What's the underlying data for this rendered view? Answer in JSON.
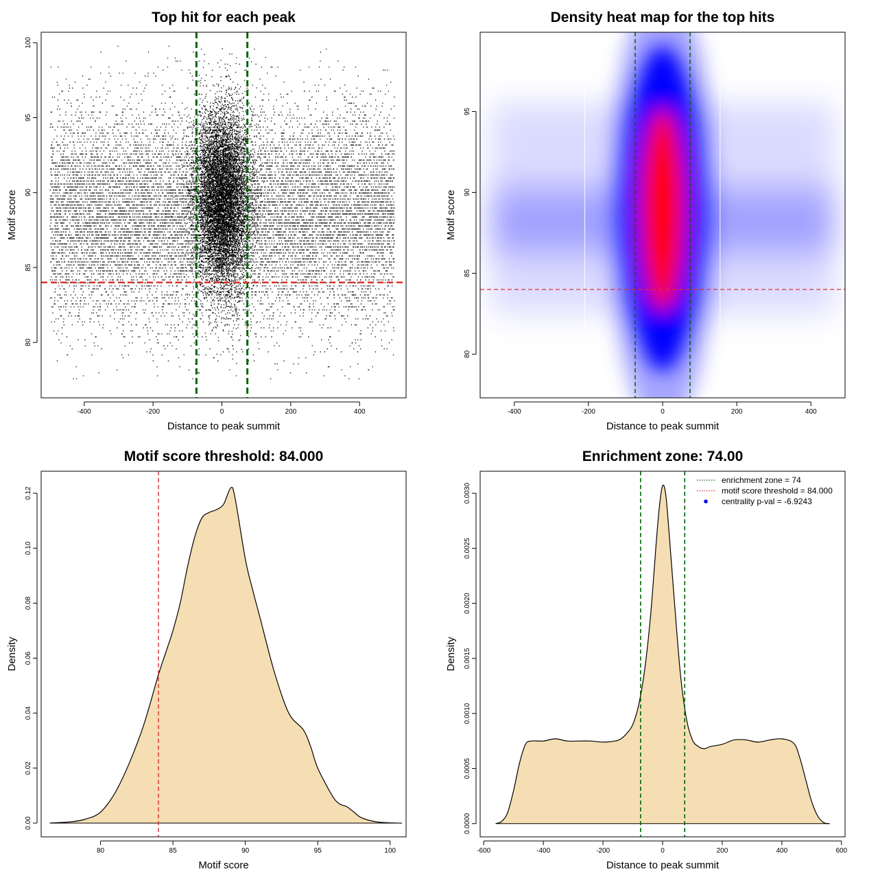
{
  "chart_data": [
    {
      "id": "scatter",
      "type": "scatter",
      "title": "Top hit for each peak",
      "xlabel": "Distance to peak summit",
      "ylabel": "Motif score",
      "xlim": [
        -525,
        535
      ],
      "ylim": [
        76.3,
        100.7
      ],
      "xticks": [
        -400,
        -200,
        0,
        200,
        400
      ],
      "xtick_labels": [
        "-400",
        "-200",
        "0",
        "200",
        "400"
      ],
      "yticks": [
        80,
        85,
        90,
        95,
        100
      ],
      "ytick_labels": [
        "80",
        "85",
        "90",
        "95",
        "100"
      ],
      "vlines": [
        -74,
        74
      ],
      "vline_color": "#006400",
      "hline": 84,
      "hline_color": "#e03030",
      "point_color": "#000000",
      "x_range": [
        -500,
        500
      ],
      "y_range": [
        77.5,
        99.8
      ],
      "center_sd": 40,
      "background_score_mean": 88.5,
      "background_score_sd": 3.5,
      "center_score_mean": 89.5,
      "center_score_sd": 3
    },
    {
      "id": "heatmap",
      "type": "heatmap",
      "title": "Density heat map for the top hits",
      "xlabel": "Distance to peak summit",
      "ylabel": "Motif score",
      "xlim": [
        -492,
        492
      ],
      "ylim": [
        77.3,
        99.9
      ],
      "xticks": [
        -400,
        -200,
        0,
        200,
        400
      ],
      "xtick_labels": [
        "-400",
        "-200",
        "0",
        "200",
        "400"
      ],
      "yticks": [
        80,
        85,
        90,
        95
      ],
      "ytick_labels": [
        "80",
        "85",
        "90",
        "95"
      ],
      "vlines": [
        -74,
        74
      ],
      "vline_color": "#006400",
      "hline": 84,
      "hline_color": "#e03030",
      "colors": [
        "#ffffff",
        "#0000ff",
        "#ff0000"
      ],
      "center": {
        "x": 0,
        "y": 89,
        "sx": 40,
        "sy": 3.6
      },
      "background_bands": [
        89.2,
        87.3
      ],
      "x_range": [
        -500,
        500
      ]
    },
    {
      "id": "score_density",
      "type": "area",
      "title": "Motif score threshold: 84.000",
      "xlabel": "Motif score",
      "ylabel": "Density",
      "xlim": [
        75.9,
        101.1
      ],
      "ylim": [
        -0.005,
        0.128
      ],
      "xticks": [
        80,
        85,
        90,
        95,
        100
      ],
      "xtick_labels": [
        "80",
        "85",
        "90",
        "95",
        "100"
      ],
      "yticks": [
        0.0,
        0.02,
        0.04,
        0.06,
        0.08,
        0.1,
        0.12
      ],
      "ytick_labels": [
        "0.00",
        "0.02",
        "0.04",
        "0.06",
        "0.08",
        "0.10",
        "0.12"
      ],
      "fill": "#f5deb3",
      "vline": 84,
      "vline_color": "#d62020",
      "x": [
        76.5,
        78,
        79,
        80,
        81,
        82,
        83,
        84,
        84.5,
        85,
        85.5,
        86,
        86.5,
        87,
        87.5,
        88,
        88.5,
        89,
        89.3,
        90,
        90.5,
        91,
        92,
        93,
        94,
        94.5,
        95,
        96,
        96.5,
        97,
        97.5,
        98,
        99,
        100,
        100.8
      ],
      "y": [
        0,
        0.0005,
        0.0015,
        0.004,
        0.011,
        0.022,
        0.036,
        0.054,
        0.062,
        0.07,
        0.08,
        0.093,
        0.104,
        0.111,
        0.113,
        0.114,
        0.116,
        0.122,
        0.118,
        0.096,
        0.085,
        0.075,
        0.055,
        0.04,
        0.034,
        0.028,
        0.02,
        0.01,
        0.007,
        0.006,
        0.004,
        0.002,
        0.0005,
        0.0001,
        0
      ]
    },
    {
      "id": "distance_density",
      "type": "area",
      "title": "Enrichment zone: 74.00",
      "xlabel": "Distance to peak summit",
      "ylabel": "Density",
      "xlim": [
        -612,
        612
      ],
      "ylim": [
        -0.00012,
        0.0032
      ],
      "xticks": [
        -600,
        -400,
        -200,
        0,
        200,
        400,
        600
      ],
      "xtick_labels": [
        "-600",
        "-400",
        "-200",
        "0",
        "200",
        "400",
        "600"
      ],
      "yticks": [
        0.0,
        0.0005,
        0.001,
        0.0015,
        0.002,
        0.0025,
        0.003
      ],
      "ytick_labels": [
        "0.0000",
        "0.0005",
        "0.0010",
        "0.0015",
        "0.0020",
        "0.0025",
        "0.0030"
      ],
      "fill": "#f5deb3",
      "vlines": [
        -74,
        74
      ],
      "vline_color": "#006400",
      "x": [
        -560,
        -540,
        -520,
        -500,
        -480,
        -460,
        -440,
        -400,
        -360,
        -320,
        -280,
        -240,
        -200,
        -160,
        -140,
        -120,
        -100,
        -80,
        -60,
        -40,
        -20,
        -10,
        0,
        10,
        20,
        40,
        60,
        80,
        100,
        120,
        140,
        160,
        200,
        240,
        280,
        320,
        360,
        400,
        440,
        460,
        480,
        500,
        520,
        540,
        560
      ],
      "y": [
        0,
        2e-05,
        0.0001,
        0.0003,
        0.00055,
        0.00072,
        0.00075,
        0.00075,
        0.00077,
        0.00075,
        0.00075,
        0.00075,
        0.00074,
        0.00075,
        0.00077,
        0.00082,
        0.0009,
        0.00108,
        0.0014,
        0.0019,
        0.0026,
        0.0029,
        0.00307,
        0.003,
        0.0027,
        0.002,
        0.00135,
        0.00095,
        0.00076,
        0.0007,
        0.00068,
        0.0007,
        0.00072,
        0.00076,
        0.00076,
        0.00074,
        0.00076,
        0.00077,
        0.00073,
        0.0006,
        0.0004,
        0.0002,
        7e-05,
        1e-05,
        0
      ],
      "legend": {
        "position": "top-right",
        "entries": [
          {
            "label": "enrichment zone = 74",
            "color": "#006400",
            "style": "dotted-line"
          },
          {
            "label": "motif score threshold = 84.000",
            "color": "#e03030",
            "style": "dotted-line"
          },
          {
            "label": "centrality p-val = -6.9243",
            "color": "#0000ee",
            "style": "dot"
          }
        ]
      }
    }
  ]
}
